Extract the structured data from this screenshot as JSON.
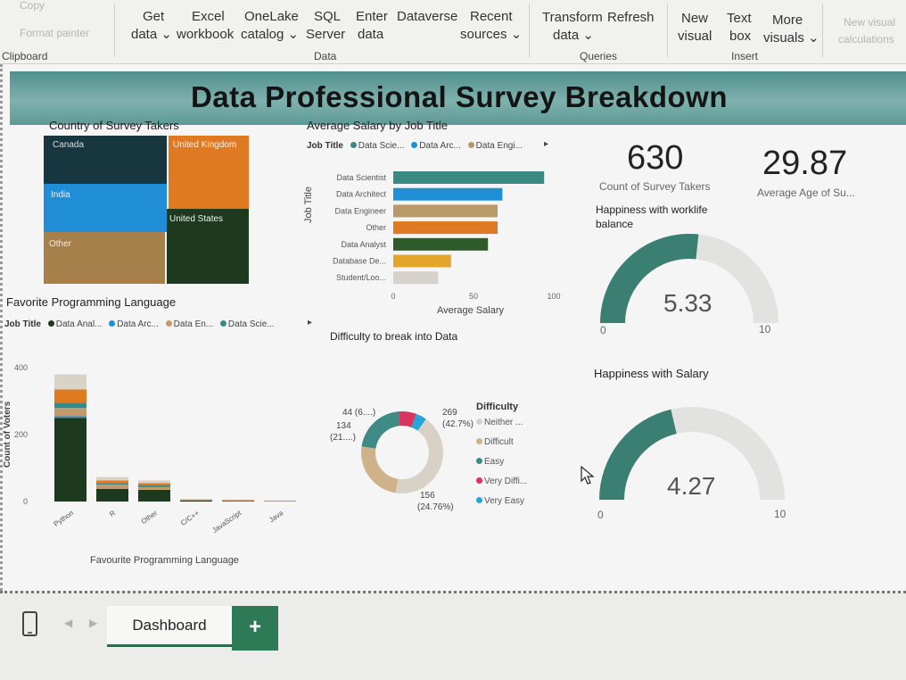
{
  "ribbon": {
    "items": [
      {
        "label": "Copy",
        "faded": true
      },
      {
        "label": "Format painter",
        "faded": true
      },
      {
        "label": "Get"
      },
      {
        "label": "data ⌄"
      },
      {
        "label": "Excel"
      },
      {
        "label": "workbook"
      },
      {
        "label": "OneLake"
      },
      {
        "label": "catalog ⌄"
      },
      {
        "label": "SQL"
      },
      {
        "label": "Server"
      },
      {
        "label": "Enter"
      },
      {
        "label": "data"
      },
      {
        "label": "Dataverse"
      },
      {
        "label": "Recent"
      },
      {
        "label": "sources ⌄"
      },
      {
        "label": "Transform"
      },
      {
        "label": "data ⌄"
      },
      {
        "label": "Refresh"
      },
      {
        "label": "New"
      },
      {
        "label": "visual"
      },
      {
        "label": "Text"
      },
      {
        "label": "box"
      },
      {
        "label": "More"
      },
      {
        "label": "visuals ⌄"
      },
      {
        "label": "New visual",
        "faded": true
      },
      {
        "label": "calculations",
        "faded": true
      }
    ],
    "groups": [
      "Clipboard",
      "Data",
      "Queries",
      "Insert"
    ]
  },
  "page_title": "Data Professional Survey Breakdown",
  "country": {
    "title": "Country of Survey Takers",
    "tiles": [
      {
        "label": "Canada",
        "color": "#17363f"
      },
      {
        "label": "United Kingdom",
        "color": "#e07a22"
      },
      {
        "label": "India",
        "color": "#1f8ed6"
      },
      {
        "label": "United States",
        "color": "#1d3a1f"
      },
      {
        "label": "Other",
        "color": "#a5804a"
      }
    ]
  },
  "salary": {
    "title": "Average Salary by Job Title",
    "legend_title": "Job Title",
    "legend": [
      {
        "label": "Data Scie...",
        "color": "#3a8a84"
      },
      {
        "label": "Data Arc...",
        "color": "#1f8fd6"
      },
      {
        "label": "Data Engi...",
        "color": "#b89a6a"
      }
    ],
    "ylabel": "Job Title",
    "xlabel": "Average Salary"
  },
  "kpis": [
    {
      "value": "630",
      "label": "Count of Survey Takers"
    },
    {
      "value": "29.87",
      "label": "Average Age of Su..."
    }
  ],
  "gauges": [
    {
      "title": "Happiness with worklife balance",
      "display": "5.33",
      "value": 5.33,
      "min": 0,
      "max": 10,
      "min_label": "0",
      "max_label": "10",
      "color": "#3a7f72"
    },
    {
      "title": "Happiness with Salary",
      "display": "4.27",
      "value": 4.27,
      "min": 0,
      "max": 10,
      "min_label": "0",
      "max_label": "10",
      "color": "#3a7f72"
    }
  ],
  "language": {
    "title": "Favorite Programming Language",
    "legend_title": "Job Title",
    "legend": [
      {
        "label": "Data Anal...",
        "color": "#1d3a1f"
      },
      {
        "label": "Data Arc...",
        "color": "#1f8fd6"
      },
      {
        "label": "Data En...",
        "color": "#c49a6c"
      },
      {
        "label": "Data Scie...",
        "color": "#3a8a84"
      }
    ],
    "ylabel": "Count of Voters",
    "xlabel": "Favourite Programming Language"
  },
  "difficulty": {
    "title": "Difficulty to break into Data",
    "legend_title": "Difficulty",
    "labels": [
      {
        "line1": "44 (6....)",
        "line2": ""
      },
      {
        "line1": "134",
        "line2": "(21....)"
      },
      {
        "line1": "269",
        "line2": "(42.7%)"
      },
      {
        "line1": "156",
        "line2": "(24.76%)"
      }
    ]
  },
  "chart_data": [
    {
      "type": "bar",
      "orientation": "horizontal",
      "title": "Average Salary by Job Title",
      "categories": [
        "Data Scientist",
        "Data Architect",
        "Data Engineer",
        "Other",
        "Data Analyst",
        "Database De...",
        "Student/Loo..."
      ],
      "values": [
        94,
        68,
        65,
        65,
        59,
        36,
        28
      ],
      "colors": [
        "#3a8a84",
        "#1f8fd6",
        "#b89a6a",
        "#e07a22",
        "#2f5a2a",
        "#e3a62a",
        "#d7d3cc"
      ],
      "xlabel": "Average Salary",
      "ylabel": "Job Title",
      "xlim": [
        0,
        100
      ],
      "xticks": [
        "0",
        "50",
        "100"
      ]
    },
    {
      "type": "bar",
      "stacked": true,
      "title": "Favorite Programming Language",
      "categories": [
        "Python",
        "R",
        "Other",
        "C/C++",
        "JavaScript",
        "Java"
      ],
      "series": [
        {
          "name": "Data Anal...",
          "color": "#1d3a1f",
          "values": [
            250,
            38,
            35,
            3,
            2,
            1
          ]
        },
        {
          "name": "Data Arc...",
          "color": "#1f8fd6",
          "values": [
            5,
            0,
            0,
            0,
            0,
            0
          ]
        },
        {
          "name": "Data En...",
          "color": "#c49a6c",
          "values": [
            25,
            12,
            8,
            1,
            1,
            0
          ]
        },
        {
          "name": "Data Scie...",
          "color": "#3a8a84",
          "values": [
            15,
            5,
            5,
            1,
            0,
            0
          ]
        },
        {
          "name": "",
          "color": "#e07a22",
          "values": [
            40,
            8,
            7,
            1,
            1,
            1
          ]
        },
        {
          "name": "",
          "color": "#d9d2c7",
          "values": [
            45,
            10,
            8,
            2,
            2,
            1
          ]
        }
      ],
      "ylabel": "Count of Voters",
      "xlabel": "Favourite Programming Language",
      "ylim": [
        0,
        400
      ],
      "yticks": [
        "0",
        "200",
        "400"
      ]
    },
    {
      "type": "pie",
      "donut": true,
      "title": "Difficulty to break into Data",
      "categories": [
        "Neither ...",
        "Difficult",
        "Easy",
        "Very Diffi...",
        "Very Easy"
      ],
      "values": [
        269,
        156,
        134,
        44,
        27
      ],
      "colors": [
        "#d8d2c6",
        "#cfb28a",
        "#3f8a85",
        "#d9345f",
        "#25a6d9"
      ]
    }
  ],
  "tabs": {
    "active": "Dashboard",
    "add": "+"
  }
}
